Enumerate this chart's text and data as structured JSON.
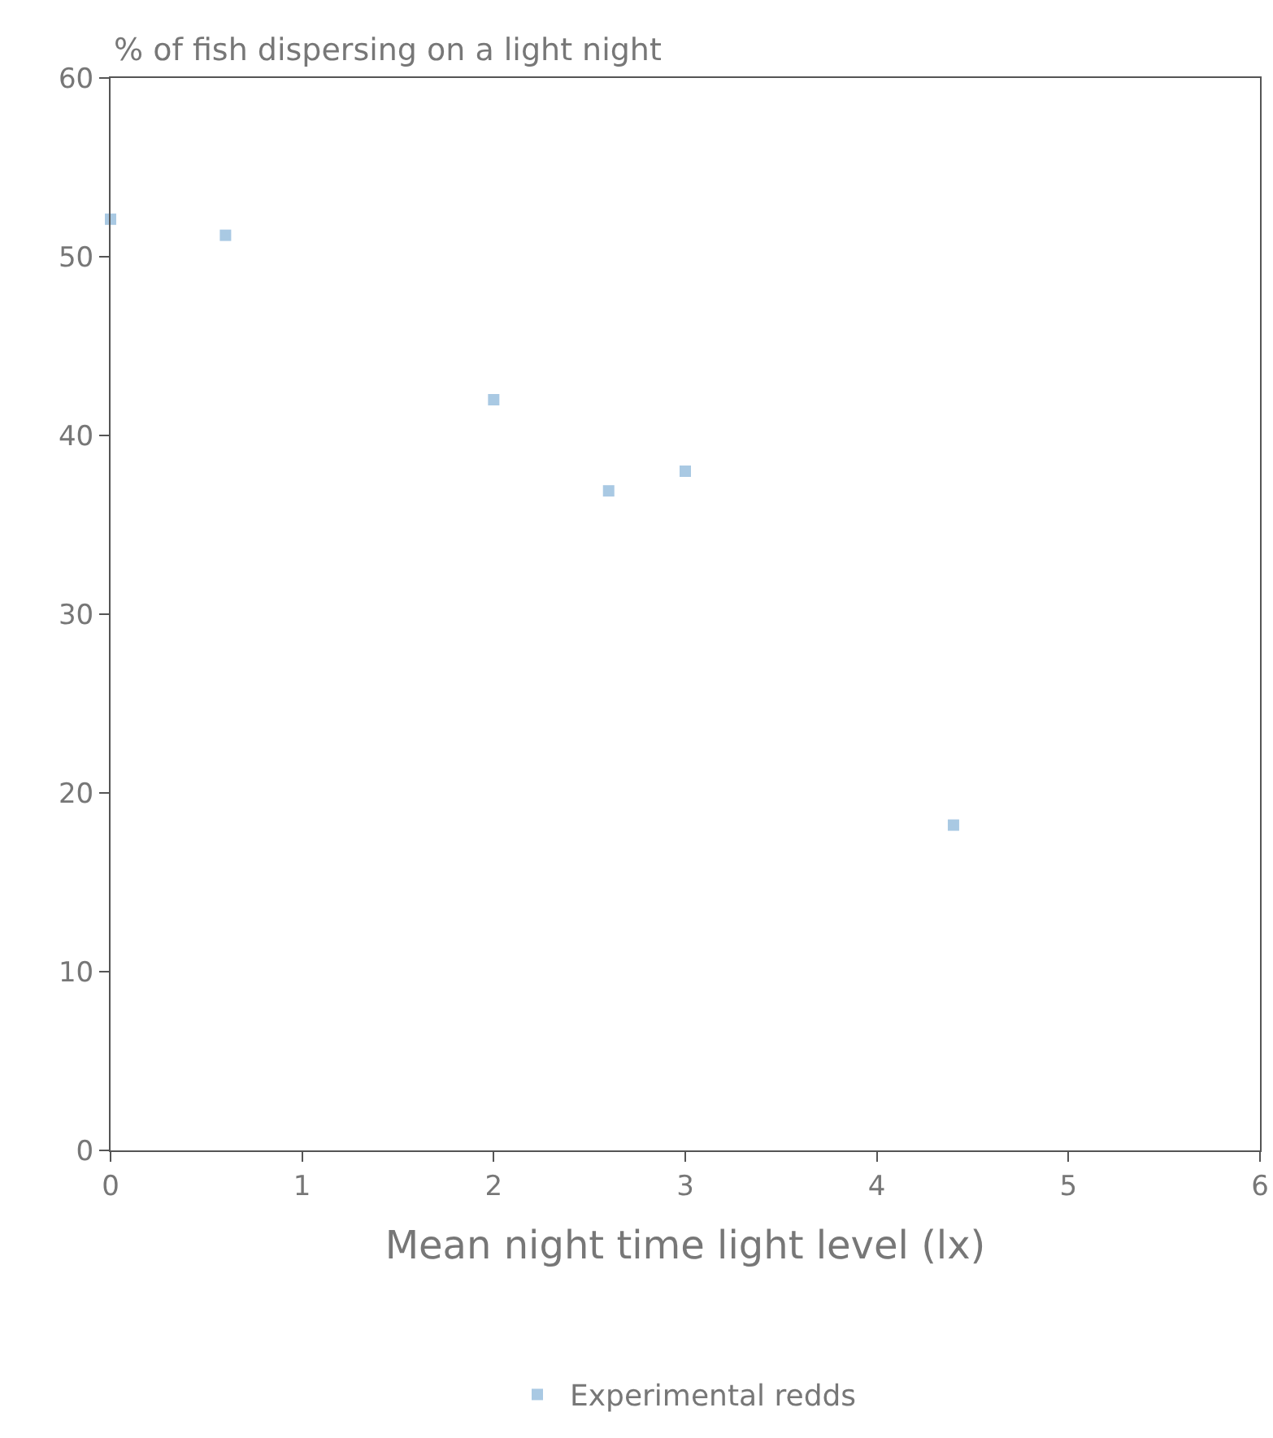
{
  "chart_data": {
    "type": "scatter",
    "ylabel": "% of fish dispersing on a light night",
    "xlabel": "Mean night time light level (lx)",
    "x": [
      0,
      0.6,
      2.0,
      2.6,
      3.0,
      4.4
    ],
    "series": [
      {
        "name": "Experimental redds",
        "color": "#a9c9e3",
        "values": [
          52.1,
          51.2,
          42.0,
          36.9,
          38.0,
          18.2
        ]
      }
    ],
    "xlim": [
      0,
      6
    ],
    "xticks": [
      0,
      1,
      2,
      3,
      4,
      5,
      6
    ],
    "ylim": [
      0,
      60
    ],
    "yticks": [
      0,
      10,
      20,
      30,
      40,
      50,
      60
    ],
    "marker": "square",
    "grid": false,
    "legend": "bottom"
  }
}
